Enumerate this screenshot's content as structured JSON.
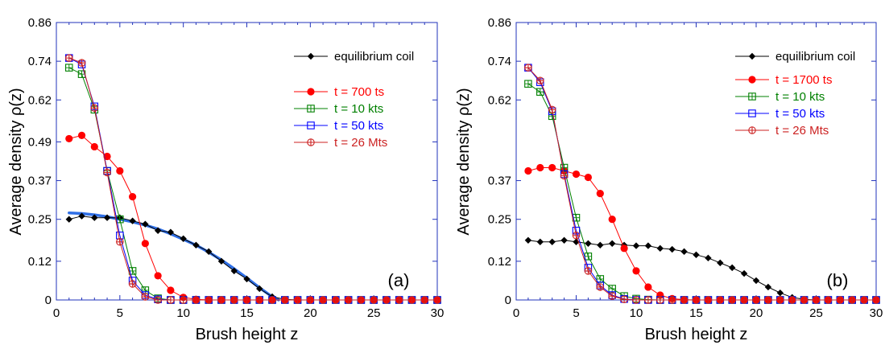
{
  "chart_data": [
    {
      "type": "line",
      "panel_label": "(a)",
      "xlabel": "Brush height z",
      "ylabel": "Average density ρ(z)",
      "xlim": [
        0,
        30
      ],
      "ylim": [
        0,
        0.86
      ],
      "xticks": [
        "0",
        "5",
        "10",
        "15",
        "20",
        "25",
        "30"
      ],
      "yticks": [
        "0",
        "0.12",
        "0.25",
        "0.37",
        "0.49",
        "0.62",
        "0.74",
        "0.86"
      ],
      "legend_position": "top-right",
      "fit_curve": {
        "color": "#2f6fe6",
        "x": [
          1,
          2,
          3,
          4,
          5,
          6,
          7,
          8,
          9,
          10,
          11,
          12,
          13,
          14,
          15,
          16,
          17,
          17.5
        ],
        "y": [
          0.27,
          0.268,
          0.264,
          0.258,
          0.25,
          0.242,
          0.232,
          0.22,
          0.205,
          0.188,
          0.17,
          0.148,
          0.124,
          0.097,
          0.068,
          0.038,
          0.01,
          0.0
        ]
      },
      "series": [
        {
          "name": "equilibrium coil",
          "color": "#000000",
          "marker": "diamond",
          "legend_group": "top",
          "x": [
            1,
            2,
            3,
            4,
            5,
            6,
            7,
            8,
            9,
            10,
            11,
            12,
            13,
            14,
            15,
            16,
            17,
            18,
            19,
            20,
            21,
            22,
            23,
            24,
            25,
            26,
            27,
            28,
            29,
            30
          ],
          "y": [
            0.25,
            0.26,
            0.255,
            0.255,
            0.255,
            0.245,
            0.235,
            0.215,
            0.21,
            0.19,
            0.17,
            0.15,
            0.12,
            0.09,
            0.065,
            0.035,
            0.01,
            0.002,
            0,
            0,
            0,
            0,
            0,
            0,
            0,
            0,
            0,
            0,
            0,
            0
          ]
        },
        {
          "name": "t = 700 ts",
          "color": "#ff0000",
          "marker": "filled-circle",
          "legend_group": "bottom",
          "x": [
            1,
            2,
            3,
            4,
            5,
            6,
            7,
            8,
            9,
            10,
            11,
            12,
            13,
            14,
            15,
            16,
            17,
            18,
            19,
            20,
            21,
            22,
            23,
            24,
            25,
            26,
            27,
            28,
            29,
            30
          ],
          "y": [
            0.5,
            0.51,
            0.475,
            0.445,
            0.4,
            0.32,
            0.175,
            0.075,
            0.03,
            0.008,
            0.002,
            0,
            0,
            0,
            0,
            0,
            0,
            0,
            0,
            0,
            0,
            0,
            0,
            0,
            0,
            0,
            0,
            0,
            0,
            0
          ]
        },
        {
          "name": "t = 10 kts",
          "color": "#008000",
          "marker": "open-square-cross",
          "legend_group": "bottom",
          "x": [
            1,
            2,
            3,
            4,
            5,
            6,
            7,
            8,
            9,
            10,
            11,
            12,
            13,
            14,
            15,
            16,
            17,
            18,
            19,
            20,
            21,
            22,
            23,
            24,
            25,
            26,
            27,
            28,
            29,
            30
          ],
          "y": [
            0.72,
            0.7,
            0.59,
            0.4,
            0.25,
            0.09,
            0.03,
            0.005,
            0,
            0,
            0,
            0,
            0,
            0,
            0,
            0,
            0,
            0,
            0,
            0,
            0,
            0,
            0,
            0,
            0,
            0,
            0,
            0,
            0,
            0
          ]
        },
        {
          "name": "t = 50 kts",
          "color": "#0000ff",
          "marker": "open-square",
          "legend_group": "bottom",
          "x": [
            1,
            2,
            3,
            4,
            5,
            6,
            7,
            8,
            9,
            10,
            11,
            12,
            13,
            14,
            15,
            16,
            17,
            18,
            19,
            20,
            21,
            22,
            23,
            24,
            25,
            26,
            27,
            28,
            29,
            30
          ],
          "y": [
            0.75,
            0.73,
            0.6,
            0.4,
            0.2,
            0.06,
            0.015,
            0.002,
            0,
            0,
            0,
            0,
            0,
            0,
            0,
            0,
            0,
            0,
            0,
            0,
            0,
            0,
            0,
            0,
            0,
            0,
            0,
            0,
            0,
            0
          ]
        },
        {
          "name": "t = 26 Mts",
          "color": "#cc2222",
          "marker": "open-circle-cross",
          "legend_group": "bottom",
          "x": [
            1,
            2,
            3,
            4,
            5,
            6,
            7,
            8,
            9,
            10,
            11,
            12,
            13,
            14,
            15,
            16,
            17,
            18,
            19,
            20,
            21,
            22,
            23,
            24,
            25,
            26,
            27,
            28,
            29,
            30
          ],
          "y": [
            0.75,
            0.735,
            0.595,
            0.395,
            0.18,
            0.05,
            0.01,
            0,
            0,
            0,
            0,
            0,
            0,
            0,
            0,
            0,
            0,
            0,
            0,
            0,
            0,
            0,
            0,
            0,
            0,
            0,
            0,
            0,
            0,
            0
          ]
        }
      ]
    },
    {
      "type": "line",
      "panel_label": "(b)",
      "xlabel": "Brush height z",
      "ylabel": "Average density ρ(z)",
      "xlim": [
        0,
        30
      ],
      "ylim": [
        0,
        0.86
      ],
      "xticks": [
        "0",
        "5",
        "10",
        "15",
        "20",
        "25",
        "30"
      ],
      "yticks": [
        "0",
        "0.12",
        "0.25",
        "0.37",
        "0.62",
        "0.74",
        "0.86"
      ],
      "legend_position": "top-right",
      "series": [
        {
          "name": "equilibrium coil",
          "color": "#000000",
          "marker": "diamond",
          "legend_group": "top",
          "x": [
            1,
            2,
            3,
            4,
            5,
            6,
            7,
            8,
            9,
            10,
            11,
            12,
            13,
            14,
            15,
            16,
            17,
            18,
            19,
            20,
            21,
            22,
            23,
            24,
            25,
            26,
            27,
            28,
            29,
            30
          ],
          "y": [
            0.185,
            0.18,
            0.18,
            0.185,
            0.18,
            0.175,
            0.17,
            0.175,
            0.17,
            0.168,
            0.168,
            0.16,
            0.157,
            0.15,
            0.14,
            0.13,
            0.115,
            0.1,
            0.082,
            0.06,
            0.04,
            0.022,
            0.008,
            0.002,
            0,
            0,
            0,
            0,
            0,
            0
          ]
        },
        {
          "name": "t = 1700 ts",
          "color": "#ff0000",
          "marker": "filled-circle",
          "legend_group": "bottom",
          "x": [
            1,
            2,
            3,
            4,
            5,
            6,
            7,
            8,
            9,
            10,
            11,
            12,
            13,
            14,
            15,
            16,
            17,
            18,
            19,
            20,
            21,
            22,
            23,
            24,
            25,
            26,
            27,
            28,
            29,
            30
          ],
          "y": [
            0.4,
            0.41,
            0.41,
            0.4,
            0.39,
            0.38,
            0.33,
            0.25,
            0.16,
            0.09,
            0.04,
            0.015,
            0.004,
            0.001,
            0,
            0,
            0,
            0,
            0,
            0,
            0,
            0,
            0,
            0,
            0,
            0,
            0,
            0,
            0,
            0
          ]
        },
        {
          "name": "t = 10 kts",
          "color": "#008000",
          "marker": "open-square-cross",
          "legend_group": "bottom",
          "x": [
            1,
            2,
            3,
            4,
            5,
            6,
            7,
            8,
            9,
            10,
            11,
            12,
            13,
            14,
            15,
            16,
            17,
            18,
            19,
            20,
            21,
            22,
            23,
            24,
            25,
            26,
            27,
            28,
            29,
            30
          ],
          "y": [
            0.67,
            0.645,
            0.57,
            0.41,
            0.255,
            0.135,
            0.065,
            0.035,
            0.012,
            0.004,
            0.001,
            0,
            0,
            0,
            0,
            0,
            0,
            0,
            0,
            0,
            0,
            0,
            0,
            0,
            0,
            0,
            0,
            0,
            0,
            0
          ]
        },
        {
          "name": "t = 50 kts",
          "color": "#0000ff",
          "marker": "open-square",
          "legend_group": "bottom",
          "x": [
            1,
            2,
            3,
            4,
            5,
            6,
            7,
            8,
            9,
            10,
            11,
            12,
            13,
            14,
            15,
            16,
            17,
            18,
            19,
            20,
            21,
            22,
            23,
            24,
            25,
            26,
            27,
            28,
            29,
            30
          ],
          "y": [
            0.72,
            0.675,
            0.585,
            0.39,
            0.215,
            0.1,
            0.045,
            0.015,
            0.003,
            0,
            0,
            0,
            0,
            0,
            0,
            0,
            0,
            0,
            0,
            0,
            0,
            0,
            0,
            0,
            0,
            0,
            0,
            0,
            0,
            0
          ]
        },
        {
          "name": "t = 26 Mts",
          "color": "#cc2222",
          "marker": "open-circle-cross",
          "legend_group": "bottom",
          "x": [
            1,
            2,
            3,
            4,
            5,
            6,
            7,
            8,
            9,
            10,
            11,
            12,
            13,
            14,
            15,
            16,
            17,
            18,
            19,
            20,
            21,
            22,
            23,
            24,
            25,
            26,
            27,
            28,
            29,
            30
          ],
          "y": [
            0.72,
            0.68,
            0.59,
            0.385,
            0.2,
            0.09,
            0.04,
            0.012,
            0.002,
            0,
            0,
            0,
            0,
            0,
            0,
            0,
            0,
            0,
            0,
            0,
            0,
            0,
            0,
            0,
            0,
            0,
            0,
            0,
            0,
            0
          ]
        }
      ]
    }
  ]
}
